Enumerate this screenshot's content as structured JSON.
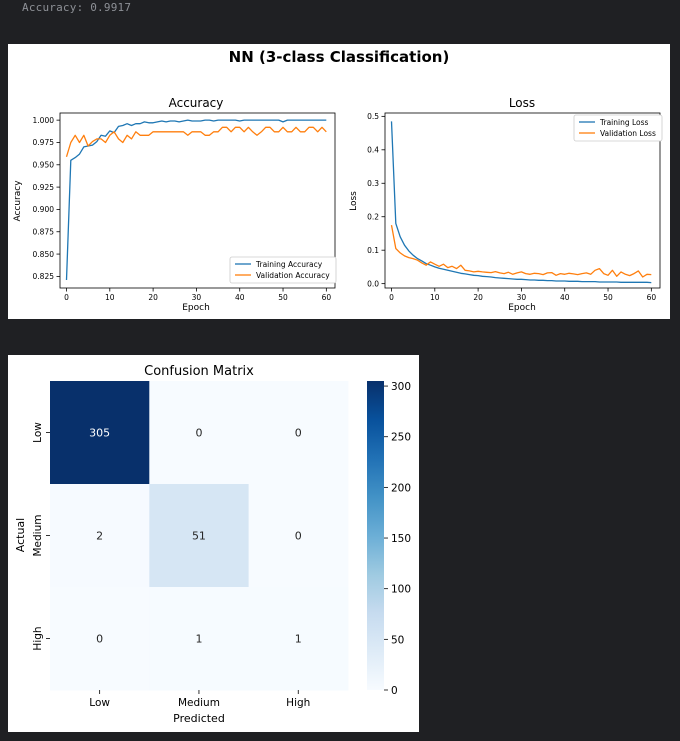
{
  "console": {
    "text": "Accuracy: 0.9917"
  },
  "figure_title": "NN (3-class Classification)",
  "chart_data": [
    {
      "type": "line",
      "title": "Accuracy",
      "xlabel": "Epoch",
      "ylabel": "Accuracy",
      "xlim": [
        -1.5,
        62
      ],
      "ylim": [
        0.812,
        1.008
      ],
      "x_ticks": [
        "0",
        "10",
        "20",
        "30",
        "40",
        "50",
        "60"
      ],
      "y_ticks": [
        "0.825",
        "0.850",
        "0.875",
        "0.900",
        "0.925",
        "0.950",
        "0.975",
        "1.000"
      ],
      "legend_position": "lower-right",
      "grid": false,
      "series": [
        {
          "name": "Training Accuracy",
          "color": "#1f77b4",
          "x": [
            0,
            1,
            2,
            3,
            4,
            5,
            6,
            7,
            8,
            9,
            10,
            11,
            12,
            13,
            14,
            15,
            16,
            17,
            18,
            19,
            20,
            21,
            22,
            23,
            24,
            25,
            26,
            27,
            28,
            29,
            30,
            31,
            32,
            33,
            34,
            35,
            36,
            37,
            38,
            39,
            40,
            41,
            42,
            43,
            44,
            45,
            46,
            47,
            48,
            49,
            50,
            51,
            52,
            53,
            54,
            55,
            56,
            57,
            58,
            59,
            60
          ],
          "values": [
            0.821,
            0.955,
            0.958,
            0.962,
            0.97,
            0.971,
            0.972,
            0.976,
            0.983,
            0.982,
            0.988,
            0.986,
            0.993,
            0.994,
            0.996,
            0.994,
            0.996,
            0.996,
            0.998,
            0.997,
            0.997,
            0.998,
            0.999,
            0.998,
            0.999,
            0.999,
            0.998,
            0.999,
            1.0,
            0.999,
            0.999,
            0.999,
            1.0,
            1.0,
            0.999,
            1.0,
            1.0,
            1.0,
            1.0,
            1.0,
            0.999,
            1.0,
            1.0,
            1.0,
            1.0,
            1.0,
            1.0,
            1.0,
            1.0,
            1.0,
            0.998,
            1.0,
            1.0,
            1.0,
            1.0,
            1.0,
            1.0,
            1.0,
            1.0,
            1.0,
            1.0
          ]
        },
        {
          "name": "Validation Accuracy",
          "color": "#ff7f0e",
          "x": [
            0,
            1,
            2,
            3,
            4,
            5,
            6,
            7,
            8,
            9,
            10,
            11,
            12,
            13,
            14,
            15,
            16,
            17,
            18,
            19,
            20,
            21,
            22,
            23,
            24,
            25,
            26,
            27,
            28,
            29,
            30,
            31,
            32,
            33,
            34,
            35,
            36,
            37,
            38,
            39,
            40,
            41,
            42,
            43,
            44,
            45,
            46,
            47,
            48,
            49,
            50,
            51,
            52,
            53,
            54,
            55,
            56,
            57,
            58,
            59,
            60
          ],
          "values": [
            0.959,
            0.975,
            0.983,
            0.975,
            0.983,
            0.971,
            0.976,
            0.979,
            0.979,
            0.975,
            0.983,
            0.987,
            0.979,
            0.975,
            0.983,
            0.979,
            0.987,
            0.983,
            0.983,
            0.983,
            0.987,
            0.987,
            0.987,
            0.987,
            0.987,
            0.987,
            0.987,
            0.987,
            0.983,
            0.987,
            0.987,
            0.987,
            0.983,
            0.983,
            0.987,
            0.987,
            0.992,
            0.992,
            0.987,
            0.992,
            0.992,
            0.987,
            0.992,
            0.987,
            0.983,
            0.987,
            0.992,
            0.992,
            0.987,
            0.987,
            0.992,
            0.987,
            0.987,
            0.992,
            0.987,
            0.987,
            0.992,
            0.992,
            0.987,
            0.992,
            0.987
          ]
        }
      ]
    },
    {
      "type": "line",
      "title": "Loss",
      "xlabel": "Epoch",
      "ylabel": "Loss",
      "xlim": [
        -1.5,
        62
      ],
      "ylim": [
        -0.013,
        0.51
      ],
      "x_ticks": [
        "0",
        "10",
        "20",
        "30",
        "40",
        "50",
        "60"
      ],
      "y_ticks": [
        "0.0",
        "0.1",
        "0.2",
        "0.3",
        "0.4",
        "0.5"
      ],
      "legend_position": "upper-right",
      "grid": false,
      "series": [
        {
          "name": "Training Loss",
          "color": "#1f77b4",
          "x": [
            0,
            1,
            2,
            3,
            4,
            5,
            6,
            7,
            8,
            9,
            10,
            11,
            12,
            13,
            14,
            15,
            16,
            17,
            18,
            19,
            20,
            21,
            22,
            23,
            24,
            25,
            26,
            27,
            28,
            29,
            30,
            31,
            32,
            33,
            34,
            35,
            36,
            37,
            38,
            39,
            40,
            41,
            42,
            43,
            44,
            45,
            46,
            47,
            48,
            49,
            50,
            51,
            52,
            53,
            54,
            55,
            56,
            57,
            58,
            59,
            60
          ],
          "values": [
            0.485,
            0.18,
            0.14,
            0.115,
            0.098,
            0.085,
            0.075,
            0.068,
            0.06,
            0.055,
            0.05,
            0.046,
            0.043,
            0.04,
            0.037,
            0.034,
            0.031,
            0.029,
            0.027,
            0.025,
            0.024,
            0.022,
            0.021,
            0.02,
            0.018,
            0.017,
            0.016,
            0.015,
            0.014,
            0.013,
            0.013,
            0.012,
            0.011,
            0.011,
            0.01,
            0.01,
            0.009,
            0.009,
            0.008,
            0.008,
            0.008,
            0.007,
            0.007,
            0.007,
            0.006,
            0.006,
            0.006,
            0.006,
            0.005,
            0.005,
            0.005,
            0.005,
            0.005,
            0.004,
            0.004,
            0.004,
            0.004,
            0.004,
            0.004,
            0.004,
            0.003
          ]
        },
        {
          "name": "Validation Loss",
          "color": "#ff7f0e",
          "x": [
            0,
            1,
            2,
            3,
            4,
            5,
            6,
            7,
            8,
            9,
            10,
            11,
            12,
            13,
            14,
            15,
            16,
            17,
            18,
            19,
            20,
            21,
            22,
            23,
            24,
            25,
            26,
            27,
            28,
            29,
            30,
            31,
            32,
            33,
            34,
            35,
            36,
            37,
            38,
            39,
            40,
            41,
            42,
            43,
            44,
            45,
            46,
            47,
            48,
            49,
            50,
            51,
            52,
            53,
            54,
            55,
            56,
            57,
            58,
            59,
            60
          ],
          "values": [
            0.175,
            0.105,
            0.092,
            0.083,
            0.078,
            0.075,
            0.07,
            0.062,
            0.055,
            0.065,
            0.058,
            0.052,
            0.058,
            0.048,
            0.052,
            0.045,
            0.055,
            0.04,
            0.038,
            0.035,
            0.037,
            0.035,
            0.034,
            0.033,
            0.036,
            0.032,
            0.03,
            0.034,
            0.028,
            0.032,
            0.035,
            0.03,
            0.028,
            0.031,
            0.03,
            0.027,
            0.032,
            0.033,
            0.025,
            0.03,
            0.028,
            0.031,
            0.029,
            0.027,
            0.03,
            0.032,
            0.028,
            0.04,
            0.045,
            0.03,
            0.025,
            0.04,
            0.022,
            0.035,
            0.028,
            0.024,
            0.03,
            0.038,
            0.02,
            0.028,
            0.027
          ]
        }
      ]
    },
    {
      "type": "heatmap",
      "title": "Confusion Matrix",
      "xlabel": "Predicted",
      "ylabel": "Actual",
      "x_categories": [
        "Low",
        "Medium",
        "High"
      ],
      "y_categories": [
        "Low",
        "Medium",
        "High"
      ],
      "values": [
        [
          305,
          0,
          0
        ],
        [
          2,
          51,
          0
        ],
        [
          0,
          1,
          1
        ]
      ],
      "colormap": "Blues",
      "colorbar_range": [
        0,
        305
      ],
      "colorbar_ticks": [
        "0",
        "50",
        "100",
        "150",
        "200",
        "250",
        "300"
      ]
    }
  ]
}
